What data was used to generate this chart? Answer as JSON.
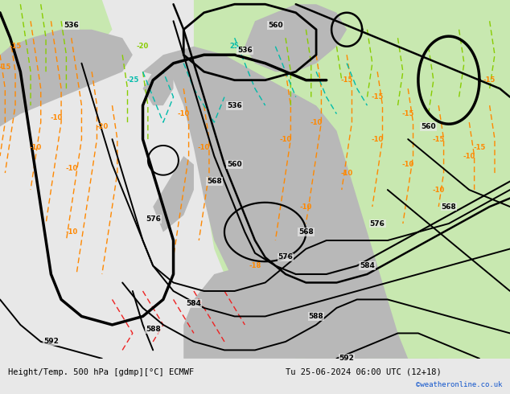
{
  "title_left": "Height/Temp. 500 hPa [gdmp][°C] ECMWF",
  "title_right": "Tu 25-06-2024 06:00 UTC (12+18)",
  "credit": "©weatheronline.co.uk",
  "bg_ocean": "#e8e8e8",
  "bg_green": "#c8e8b0",
  "bg_land": "#b8b8b8",
  "bg_bar": "#d0d0d0",
  "z500_color": "#000000",
  "temp_orange": "#ff8800",
  "temp_green": "#88cc00",
  "temp_cyan": "#00bbaa",
  "temp_red": "#ee2222",
  "figsize": [
    6.34,
    4.9
  ],
  "dpi": 100
}
